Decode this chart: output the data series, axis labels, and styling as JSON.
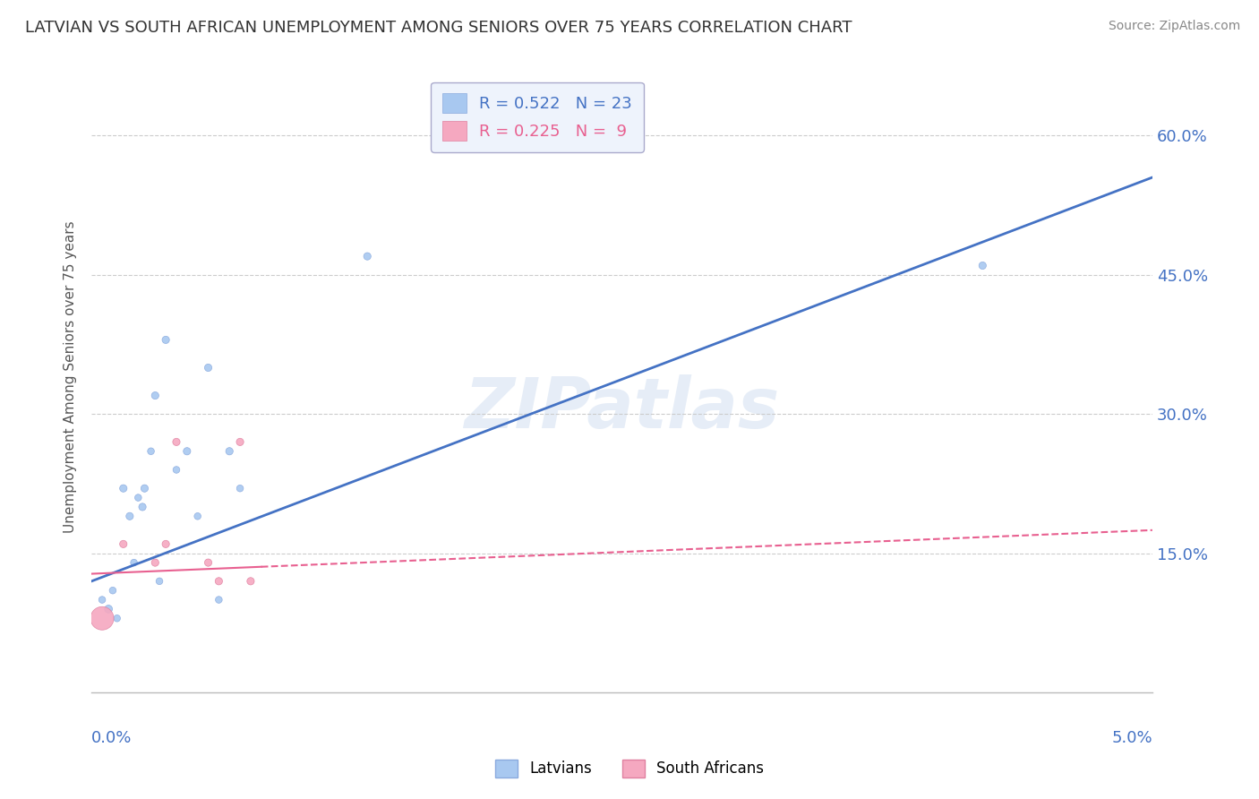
{
  "title": "LATVIAN VS SOUTH AFRICAN UNEMPLOYMENT AMONG SENIORS OVER 75 YEARS CORRELATION CHART",
  "source": "Source: ZipAtlas.com",
  "ylabel": "Unemployment Among Seniors over 75 years",
  "xlim": [
    0.0,
    5.0
  ],
  "ylim": [
    0.0,
    0.68
  ],
  "yticks": [
    0.15,
    0.3,
    0.45,
    0.6
  ],
  "ytick_labels": [
    "15.0%",
    "30.0%",
    "45.0%",
    "60.0%"
  ],
  "xtick_left_label": "0.0%",
  "xtick_right_label": "5.0%",
  "latvian_R": 0.522,
  "latvian_N": 23,
  "southafrican_R": 0.225,
  "southafrican_N": 9,
  "latvian_color": "#A8C8F0",
  "southafrican_color": "#F5A8C0",
  "latvian_line_color": "#4472C4",
  "southafrican_line_color": "#E86090",
  "watermark_text": "ZIPatlas",
  "legend_box_color": "#EEF3FC",
  "background_color": "#FFFFFF",
  "grid_color": "#CCCCCC",
  "title_color": "#333333",
  "tick_color": "#4472C4",
  "latvian_x": [
    0.05,
    0.08,
    0.1,
    0.12,
    0.15,
    0.18,
    0.2,
    0.22,
    0.24,
    0.25,
    0.28,
    0.3,
    0.32,
    0.35,
    0.4,
    0.45,
    0.5,
    0.55,
    0.6,
    0.65,
    0.7,
    1.3,
    4.2
  ],
  "latvian_y": [
    0.1,
    0.09,
    0.11,
    0.08,
    0.22,
    0.19,
    0.14,
    0.21,
    0.2,
    0.22,
    0.26,
    0.32,
    0.12,
    0.38,
    0.24,
    0.26,
    0.19,
    0.35,
    0.1,
    0.26,
    0.22,
    0.47,
    0.46
  ],
  "latvian_sizes": [
    30,
    40,
    30,
    30,
    35,
    35,
    30,
    30,
    35,
    35,
    30,
    35,
    30,
    35,
    30,
    35,
    30,
    35,
    30,
    35,
    30,
    35,
    35
  ],
  "southafrican_x": [
    0.05,
    0.15,
    0.3,
    0.35,
    0.4,
    0.55,
    0.6,
    0.7,
    0.75
  ],
  "southafrican_y": [
    0.08,
    0.16,
    0.14,
    0.16,
    0.27,
    0.14,
    0.12,
    0.27,
    0.12
  ],
  "southafrican_sizes": [
    350,
    35,
    35,
    35,
    35,
    35,
    35,
    35,
    35
  ],
  "lv_trendline_x": [
    0.0,
    5.0
  ],
  "lv_trendline_y": [
    0.12,
    0.555
  ],
  "sa_trendline_x": [
    0.0,
    5.0
  ],
  "sa_trendline_y": [
    0.128,
    0.175
  ]
}
